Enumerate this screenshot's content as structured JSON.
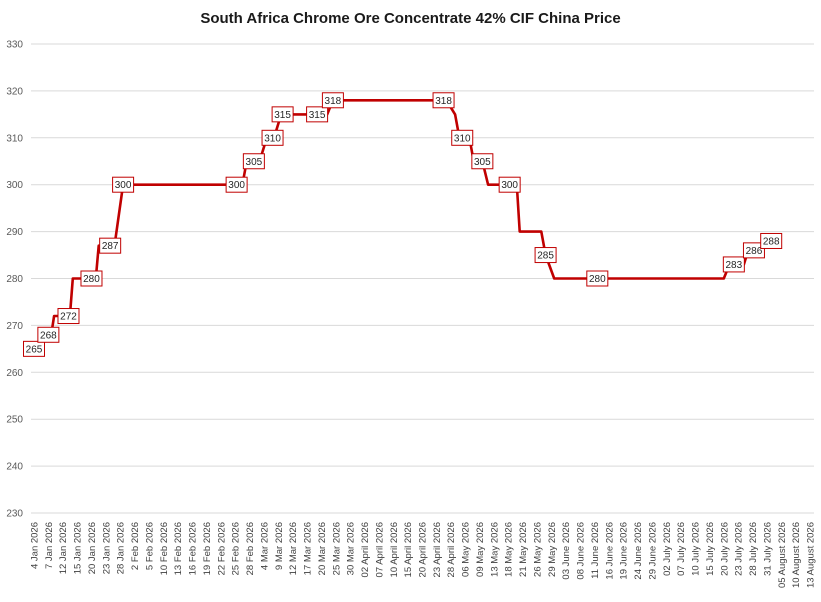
{
  "chart_data": {
    "type": "line",
    "title": "South Africa Chrome Ore Concentrate 42% CIF China Price",
    "xlabel": "",
    "ylabel": "",
    "ylim": [
      230,
      330
    ],
    "yticks": [
      230,
      240,
      250,
      260,
      270,
      280,
      290,
      300,
      310,
      320,
      330
    ],
    "grid": true,
    "line_color": "#c00000",
    "x_ticks": [
      "4 Jan 2026",
      "7 Jan 2026",
      "12 Jan 2026",
      "15 Jan 2026",
      "20 Jan 2026",
      "23 Jan 2026",
      "28 Jan 2026",
      "2 Feb 2026",
      "5 Feb 2026",
      "10 Feb 2026",
      "13 Feb 2026",
      "16 Feb 2026",
      "19 Feb 2026",
      "22 Feb 2026",
      "25 Feb 2026",
      "28 Feb 2026",
      "4 Mar 2026",
      "9 Mar 2026",
      "12 Mar 2026",
      "17 Mar 2026",
      "20 Mar 2026",
      "25 Mar 2026",
      "30 Mar 2026",
      "02 April 2026",
      "07 April 2026",
      "10 April 2026",
      "15 April 2026",
      "20 April 2026",
      "23 April 2026",
      "28 April 2026",
      "06 May 2026",
      "09 May 2026",
      "13 May 2026",
      "18 May 2026",
      "21 May 2026",
      "26 May 2026",
      "29 May 2026",
      "03 June 2026",
      "08 June 2026",
      "11 June 2026",
      "16 June 2026",
      "19 June 2026",
      "24 June 2026",
      "29 June 2026",
      "02 July 2026",
      "07 July 2026",
      "10 July 2026",
      "15 July 2026",
      "20 July 2026",
      "23 July 2026",
      "28 July 2026",
      "31 July 2026",
      "05 August 2026",
      "10 August 2026",
      "13 August 2026"
    ],
    "series": [
      {
        "points": [
          {
            "x": 0,
            "y": 265
          },
          {
            "x": 0.6,
            "y": 268
          },
          {
            "x": 1.2,
            "y": 268
          },
          {
            "x": 1.4,
            "y": 272
          },
          {
            "x": 2.5,
            "y": 272
          },
          {
            "x": 2.7,
            "y": 280
          },
          {
            "x": 4.3,
            "y": 280
          },
          {
            "x": 4.5,
            "y": 287
          },
          {
            "x": 5.6,
            "y": 287
          },
          {
            "x": 6.2,
            "y": 300
          },
          {
            "x": 14.5,
            "y": 300
          },
          {
            "x": 14.8,
            "y": 305
          },
          {
            "x": 15.7,
            "y": 305
          },
          {
            "x": 16.2,
            "y": 310
          },
          {
            "x": 16.7,
            "y": 310
          },
          {
            "x": 17.2,
            "y": 315
          },
          {
            "x": 20.4,
            "y": 315
          },
          {
            "x": 20.8,
            "y": 318
          },
          {
            "x": 28.7,
            "y": 318
          },
          {
            "x": 29.3,
            "y": 315
          },
          {
            "x": 29.6,
            "y": 310
          },
          {
            "x": 30.3,
            "y": 310
          },
          {
            "x": 30.6,
            "y": 305
          },
          {
            "x": 31.2,
            "y": 305
          },
          {
            "x": 31.6,
            "y": 300
          },
          {
            "x": 33.6,
            "y": 300
          },
          {
            "x": 33.8,
            "y": 290
          },
          {
            "x": 35.3,
            "y": 290
          },
          {
            "x": 35.6,
            "y": 285
          },
          {
            "x": 36.2,
            "y": 280
          },
          {
            "x": 48.0,
            "y": 280
          },
          {
            "x": 48.4,
            "y": 283
          },
          {
            "x": 49.4,
            "y": 283
          },
          {
            "x": 49.7,
            "y": 286
          },
          {
            "x": 50.6,
            "y": 286
          },
          {
            "x": 51.0,
            "y": 288
          },
          {
            "x": 51.4,
            "y": 288
          }
        ]
      }
    ],
    "data_labels": [
      {
        "x": 0,
        "y": 265,
        "text": "265"
      },
      {
        "x": 1.0,
        "y": 268,
        "text": "268"
      },
      {
        "x": 2.4,
        "y": 272,
        "text": "272"
      },
      {
        "x": 4.0,
        "y": 280,
        "text": "280"
      },
      {
        "x": 5.3,
        "y": 287,
        "text": "287"
      },
      {
        "x": 6.2,
        "y": 300,
        "text": "300"
      },
      {
        "x": 14.1,
        "y": 300,
        "text": "300"
      },
      {
        "x": 15.3,
        "y": 305,
        "text": "305"
      },
      {
        "x": 16.6,
        "y": 310,
        "text": "310"
      },
      {
        "x": 17.3,
        "y": 315,
        "text": "315"
      },
      {
        "x": 19.7,
        "y": 315,
        "text": "315"
      },
      {
        "x": 20.8,
        "y": 318,
        "text": "318"
      },
      {
        "x": 28.5,
        "y": 318,
        "text": "318"
      },
      {
        "x": 29.8,
        "y": 310,
        "text": "310"
      },
      {
        "x": 31.2,
        "y": 305,
        "text": "305"
      },
      {
        "x": 33.1,
        "y": 300,
        "text": "300"
      },
      {
        "x": 35.6,
        "y": 285,
        "text": "285"
      },
      {
        "x": 39.2,
        "y": 280,
        "text": "280"
      },
      {
        "x": 48.7,
        "y": 283,
        "text": "283"
      },
      {
        "x": 50.1,
        "y": 286,
        "text": "286"
      },
      {
        "x": 51.3,
        "y": 288,
        "text": "288"
      }
    ]
  }
}
